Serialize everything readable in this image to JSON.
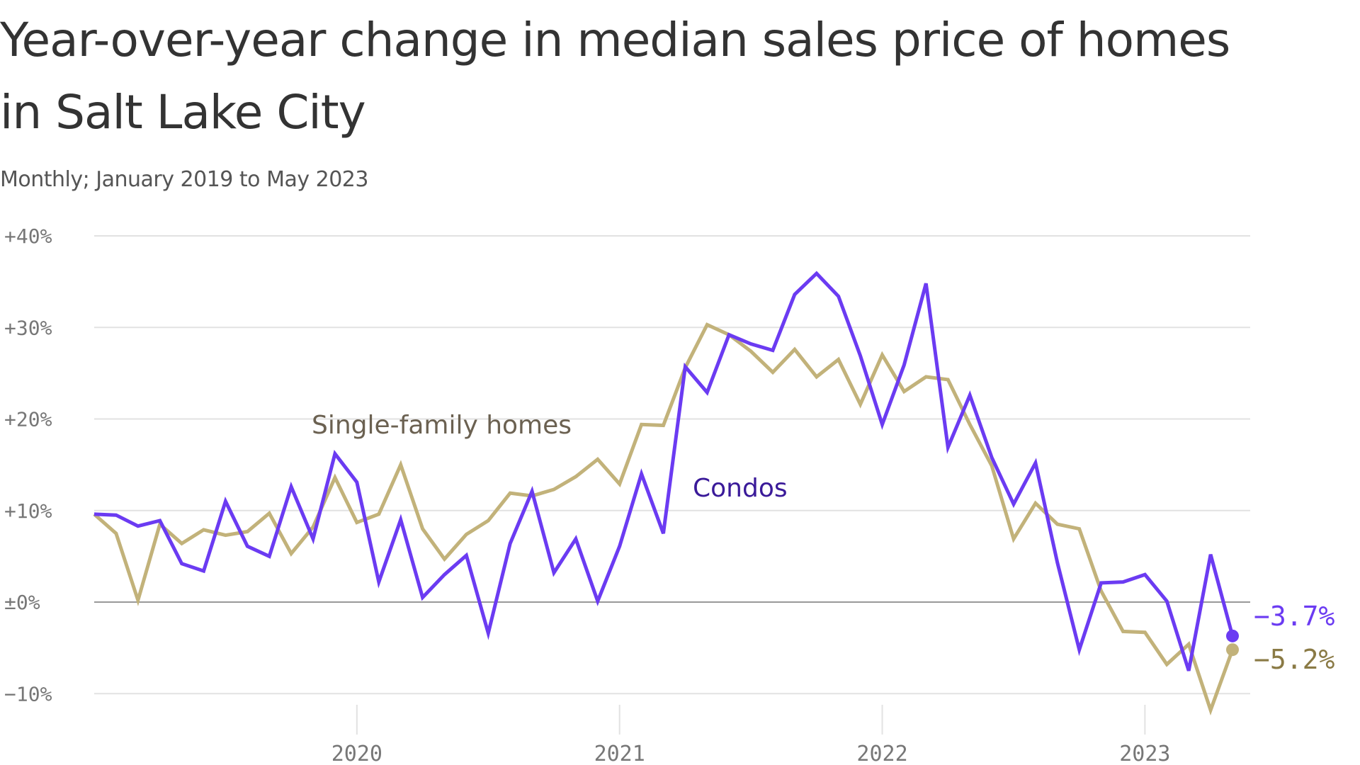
{
  "chart_data": {
    "type": "line",
    "title": "Year-over-year change in median sales price of homes in Salt Lake City",
    "subtitle": "Monthly; January 2019 to May 2023",
    "x_start": "2019-01",
    "x_end": "2023-05",
    "x_ticks": [
      {
        "date": "2020-01",
        "label": "2020"
      },
      {
        "date": "2021-01",
        "label": "2021"
      },
      {
        "date": "2022-01",
        "label": "2022"
      },
      {
        "date": "2023-01",
        "label": "2023"
      }
    ],
    "ylim": [
      -12,
      40
    ],
    "y_ticks": [
      {
        "value": 40,
        "label": "+40%"
      },
      {
        "value": 30,
        "label": "+30%"
      },
      {
        "value": 20,
        "label": "+20%"
      },
      {
        "value": 10,
        "label": "+10%"
      },
      {
        "value": 0,
        "label": "±0%"
      },
      {
        "value": -10,
        "label": "−10%"
      }
    ],
    "grid": true,
    "series": [
      {
        "name": "Single-family homes",
        "color": "#c2b27a",
        "label_color": "#6b6151",
        "end_label": "−5.2%",
        "end_label_color": "#8a7a45",
        "values": [
          9.6,
          7.5,
          0.2,
          8.5,
          6.4,
          7.9,
          7.3,
          7.7,
          9.7,
          5.3,
          8.2,
          13.6,
          8.7,
          9.6,
          15.0,
          8.0,
          4.7,
          7.4,
          8.9,
          11.9,
          11.6,
          12.3,
          13.7,
          15.6,
          12.9,
          19.4,
          19.3,
          25.6,
          30.3,
          29.2,
          27.4,
          25.1,
          27.6,
          24.6,
          26.5,
          21.6,
          27.0,
          23.0,
          24.6,
          24.3,
          19.4,
          14.9,
          6.9,
          10.8,
          8.5,
          8.0,
          1.2,
          -3.2,
          -3.3,
          -6.8,
          -4.6,
          -11.8,
          -5.2
        ]
      },
      {
        "name": "Condos",
        "color": "#6b3bf2",
        "label_color": "#3a1a99",
        "end_label": "−3.7%",
        "end_label_color": "#6b3bf2",
        "values": [
          9.6,
          9.5,
          8.3,
          8.9,
          4.2,
          3.4,
          11.0,
          6.1,
          5.0,
          12.6,
          6.9,
          16.2,
          13.1,
          2.2,
          9.0,
          0.5,
          3.0,
          5.1,
          -3.4,
          6.4,
          12.1,
          3.2,
          6.9,
          0.1,
          6.1,
          14.0,
          7.5,
          25.7,
          22.9,
          29.2,
          28.2,
          27.5,
          33.6,
          35.9,
          33.4,
          26.9,
          19.4,
          25.9,
          34.8,
          16.9,
          22.6,
          15.8,
          10.7,
          15.2,
          4.3,
          -5.2,
          2.1,
          2.2,
          3.0,
          0.1,
          -7.5,
          5.2,
          -3.7
        ]
      }
    ]
  }
}
